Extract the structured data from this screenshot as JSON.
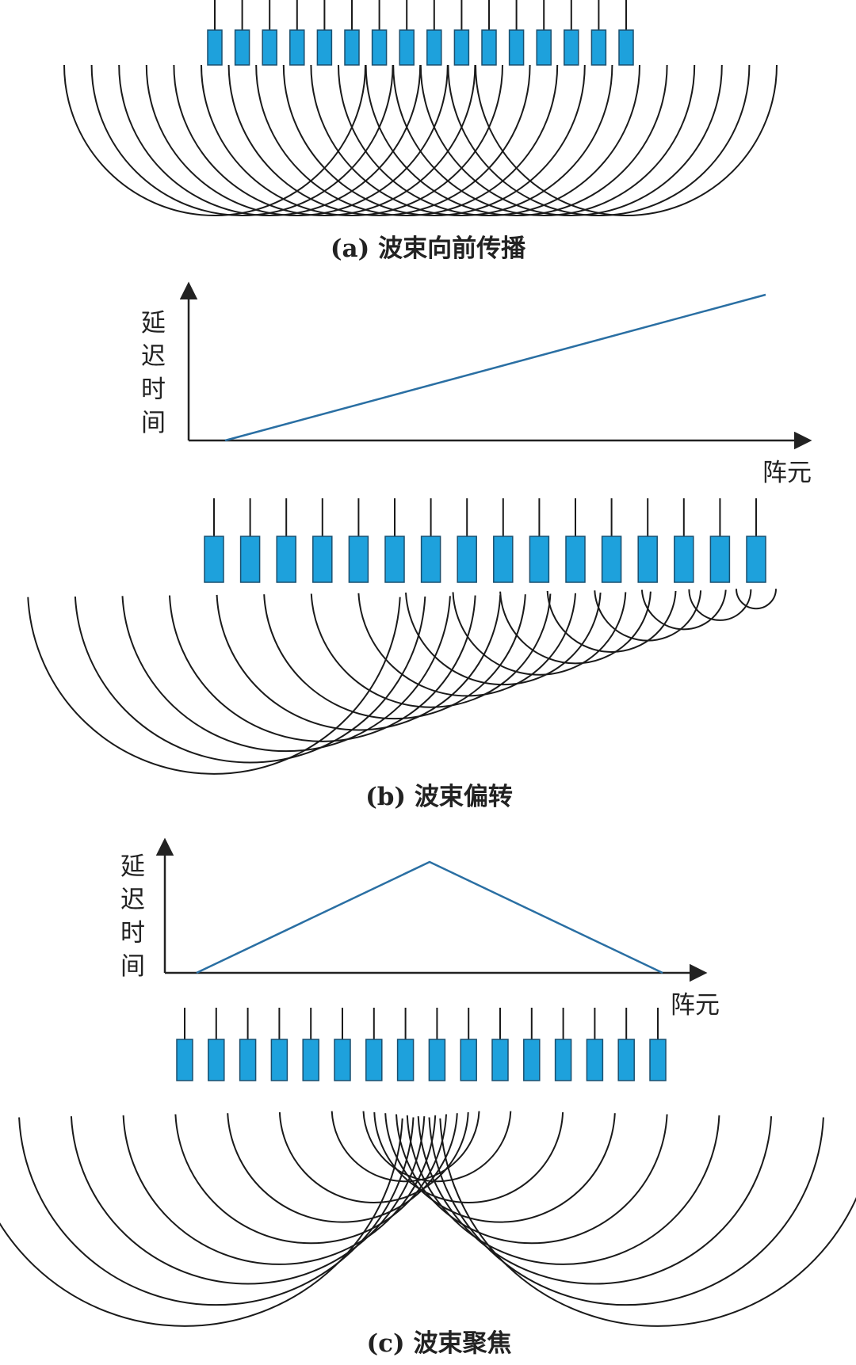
{
  "colors": {
    "element_fill": "#1ea1dc",
    "element_stroke": "#1a4f6e",
    "wave_stroke": "#1a1a1a",
    "delay_line": "#2a6fa3",
    "axis": "#222222"
  },
  "panels": [
    {
      "id": "a",
      "caption": "(a) 波束向前传播",
      "element_count": 16,
      "delay_profile": "uniform",
      "delay_plot": null
    },
    {
      "id": "b",
      "caption": "(b) 波束偏转",
      "element_count": 16,
      "delay_profile": "linear",
      "delay_plot": {
        "ylabel": "延迟时间",
        "xlabel": "阵元",
        "shape": "linear-increasing"
      }
    },
    {
      "id": "c",
      "caption": "(c) 波束聚焦",
      "element_count": 16,
      "delay_profile": "triangular",
      "delay_plot": {
        "ylabel": "延迟时间",
        "xlabel": "阵元",
        "shape": "rise-then-fall"
      }
    }
  ]
}
